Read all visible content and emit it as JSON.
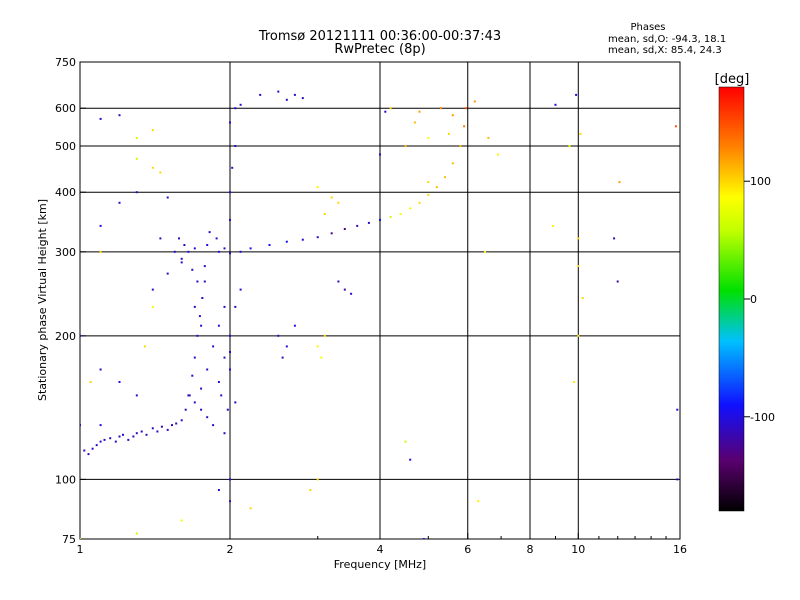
{
  "chart_data": {
    "type": "scatter",
    "title": "Tromsø 20121111 00:36:00-00:37:43",
    "subtitle": "RwPretec (8p)",
    "xlabel": "Frequency [MHz]",
    "ylabel": "Stationary phase Virtual Height [km]",
    "xscale": "log",
    "yscale": "log",
    "xlim": [
      1,
      16
    ],
    "ylim": [
      75,
      750
    ],
    "xticks": [
      1,
      2,
      4,
      6,
      8,
      10,
      16
    ],
    "xtick_labels": [
      "1",
      "2",
      "4",
      "6",
      "8",
      "10",
      "16"
    ],
    "yticks": [
      75,
      100,
      200,
      300,
      400,
      500,
      600,
      750
    ],
    "ytick_labels": [
      "75",
      "100",
      "200",
      "300",
      "400",
      "500",
      "600",
      "750"
    ],
    "grid": true,
    "stats": {
      "header": "Phases",
      "line_o": "mean, sd,O: -94.3, 18.1",
      "line_x": "mean, sd,X:  85.4, 24.3"
    },
    "colorbar": {
      "label": "[deg]",
      "range": [
        -180,
        180
      ],
      "ticks": [
        100,
        0,
        -100
      ],
      "tick_labels": [
        "100",
        "0",
        "-100"
      ]
    },
    "series": [
      {
        "points": [
          [
            1.02,
            115,
            -110
          ],
          [
            1.04,
            113,
            -112
          ],
          [
            1.06,
            116,
            -108
          ],
          [
            1.08,
            118,
            -110
          ],
          [
            1.1,
            120,
            -105
          ],
          [
            1.12,
            121,
            -110
          ],
          [
            1.15,
            122,
            -112
          ],
          [
            1.18,
            120,
            -108
          ],
          [
            1.2,
            123,
            -110
          ],
          [
            1.22,
            124,
            -105
          ],
          [
            1.25,
            121,
            -110
          ],
          [
            1.28,
            123,
            -112
          ],
          [
            1.3,
            125,
            -110
          ],
          [
            1.33,
            126,
            -108
          ],
          [
            1.36,
            124,
            -110
          ],
          [
            1.4,
            128,
            -105
          ],
          [
            1.43,
            126,
            -110
          ],
          [
            1.46,
            129,
            -112
          ],
          [
            1.5,
            127,
            -110
          ],
          [
            1.53,
            130,
            -108
          ],
          [
            1.56,
            131,
            -110
          ],
          [
            1.6,
            133,
            -105
          ],
          [
            1.63,
            140,
            -110
          ],
          [
            1.66,
            150,
            -112
          ],
          [
            1.68,
            165,
            -110
          ],
          [
            1.7,
            180,
            -108
          ],
          [
            1.72,
            200,
            -110
          ],
          [
            1.74,
            220,
            -105
          ],
          [
            1.76,
            240,
            -110
          ],
          [
            1.78,
            260,
            -112
          ],
          [
            1.6,
            290,
            -100
          ],
          [
            1.65,
            300,
            -100
          ],
          [
            1.7,
            305,
            -105
          ],
          [
            1.8,
            310,
            -105
          ],
          [
            1.9,
            300,
            -100
          ],
          [
            2.0,
            298,
            -105
          ],
          [
            2.1,
            300,
            -100
          ],
          [
            2.2,
            305,
            -100
          ],
          [
            2.4,
            310,
            -95
          ],
          [
            2.6,
            315,
            -95
          ],
          [
            2.8,
            318,
            -100
          ],
          [
            3.0,
            322,
            -100
          ],
          [
            3.2,
            328,
            -130
          ],
          [
            3.4,
            335,
            -130
          ],
          [
            3.6,
            340,
            -120
          ],
          [
            3.8,
            345,
            -110
          ],
          [
            4.0,
            350,
            -90
          ],
          [
            4.2,
            355,
            60
          ],
          [
            4.4,
            360,
            80
          ],
          [
            4.6,
            370,
            90
          ],
          [
            4.8,
            380,
            100
          ],
          [
            5.0,
            395,
            100
          ],
          [
            5.2,
            410,
            110
          ],
          [
            5.4,
            430,
            110
          ],
          [
            5.6,
            460,
            110
          ],
          [
            5.8,
            500,
            110
          ],
          [
            5.9,
            550,
            130
          ],
          [
            5.95,
            600,
            150
          ],
          [
            1.9,
            160,
            -110
          ],
          [
            1.95,
            180,
            -110
          ],
          [
            2.0,
            200,
            -110
          ],
          [
            2.05,
            230,
            -110
          ],
          [
            2.1,
            250,
            -100
          ],
          [
            2.0,
            350,
            -110
          ],
          [
            2.0,
            400,
            -110
          ],
          [
            2.02,
            450,
            -110
          ],
          [
            2.05,
            500,
            -110
          ],
          [
            2.0,
            560,
            -100
          ],
          [
            2.05,
            600,
            -100
          ],
          [
            2.1,
            610,
            -100
          ],
          [
            1.92,
            150,
            -110
          ],
          [
            1.98,
            140,
            -110
          ],
          [
            2.05,
            145,
            -110
          ],
          [
            2.5,
            200,
            -110
          ],
          [
            2.6,
            190,
            -100
          ],
          [
            2.7,
            210,
            -100
          ],
          [
            2.55,
            180,
            -110
          ],
          [
            3.1,
            360,
            100
          ],
          [
            3.2,
            390,
            100
          ],
          [
            3.0,
            410,
            90
          ],
          [
            3.3,
            380,
            100
          ],
          [
            4.5,
            500,
            110
          ],
          [
            4.7,
            560,
            110
          ],
          [
            4.8,
            590,
            120
          ],
          [
            5.3,
            600,
            130
          ],
          [
            5.6,
            580,
            120
          ],
          [
            3.4,
            250,
            -120
          ],
          [
            3.3,
            260,
            -110
          ],
          [
            3.5,
            245,
            -110
          ],
          [
            10.0,
            320,
            100
          ],
          [
            10.0,
            280,
            100
          ],
          [
            10.2,
            240,
            100
          ],
          [
            10.0,
            200,
            90
          ],
          [
            9.8,
            160,
            90
          ],
          [
            9.6,
            500,
            80
          ],
          [
            10.1,
            530,
            100
          ],
          [
            9.9,
            640,
            -100
          ],
          [
            9.0,
            610,
            -100
          ],
          [
            8.9,
            340,
            90
          ],
          [
            15.7,
            550,
            150
          ],
          [
            15.8,
            140,
            -100
          ],
          [
            15.8,
            100,
            -110
          ],
          [
            12.1,
            420,
            120
          ],
          [
            11.8,
            320,
            -110
          ],
          [
            12.0,
            260,
            -120
          ],
          [
            6.5,
            300,
            90
          ],
          [
            6.6,
            520,
            110
          ],
          [
            6.9,
            480,
            90
          ],
          [
            6.2,
            620,
            120
          ],
          [
            1.2,
            580,
            -110
          ],
          [
            1.3,
            520,
            60
          ],
          [
            1.4,
            540,
            100
          ],
          [
            1.1,
            570,
            -110
          ],
          [
            1.3,
            470,
            60
          ],
          [
            1.1,
            340,
            -100
          ],
          [
            1.1,
            300,
            100
          ],
          [
            1.0,
            200,
            -110
          ],
          [
            1.1,
            170,
            -110
          ],
          [
            1.2,
            160,
            -100
          ],
          [
            1.3,
            150,
            -110
          ],
          [
            1.05,
            160,
            100
          ],
          [
            1.1,
            130,
            -100
          ],
          [
            1.0,
            130,
            -110
          ],
          [
            1.35,
            190,
            100
          ],
          [
            1.4,
            230,
            80
          ],
          [
            1.4,
            250,
            -110
          ],
          [
            1.5,
            270,
            -110
          ],
          [
            1.45,
            320,
            -110
          ],
          [
            1.3,
            400,
            -110
          ],
          [
            1.2,
            380,
            -110
          ],
          [
            1.5,
            390,
            -110
          ],
          [
            1.45,
            440,
            100
          ],
          [
            1.4,
            450,
            100
          ],
          [
            2.3,
            640,
            -110
          ],
          [
            2.5,
            650,
            -110
          ],
          [
            2.7,
            640,
            -110
          ],
          [
            2.8,
            630,
            -110
          ],
          [
            2.6,
            625,
            -110
          ],
          [
            4.0,
            480,
            -110
          ],
          [
            4.1,
            590,
            -110
          ],
          [
            4.2,
            600,
            100
          ],
          [
            5.5,
            530,
            100
          ],
          [
            5.0,
            520,
            80
          ],
          [
            4.5,
            120,
            60
          ],
          [
            4.6,
            110,
            -100
          ],
          [
            4.9,
            75,
            -100
          ],
          [
            5.0,
            420,
            100
          ],
          [
            6.3,
            90,
            90
          ],
          [
            1.9,
            95,
            -110
          ],
          [
            2.0,
            90,
            -110
          ],
          [
            2.0,
            100,
            -100
          ],
          [
            2.2,
            87,
            100
          ],
          [
            1.0,
            75,
            100
          ],
          [
            1.3,
            77,
            60
          ],
          [
            1.6,
            82,
            80
          ],
          [
            2.9,
            95,
            100
          ],
          [
            3.0,
            100,
            100
          ],
          [
            3.1,
            200,
            100
          ],
          [
            3.0,
            190,
            90
          ],
          [
            3.05,
            180,
            80
          ],
          [
            2.0,
            185,
            -110
          ],
          [
            2.0,
            170,
            -100
          ],
          [
            1.95,
            125,
            -110
          ],
          [
            1.85,
            130,
            -110
          ],
          [
            1.8,
            135,
            -110
          ],
          [
            1.75,
            140,
            -110
          ],
          [
            1.7,
            145,
            -110
          ],
          [
            1.65,
            150,
            -110
          ],
          [
            1.75,
            155,
            -110
          ],
          [
            1.8,
            170,
            -110
          ],
          [
            1.85,
            190,
            -110
          ],
          [
            1.9,
            210,
            -110
          ],
          [
            1.95,
            230,
            -110
          ],
          [
            1.75,
            210,
            -110
          ],
          [
            1.7,
            230,
            -110
          ],
          [
            1.72,
            260,
            -110
          ],
          [
            1.78,
            280,
            -110
          ],
          [
            1.82,
            330,
            -110
          ],
          [
            1.88,
            320,
            -110
          ],
          [
            1.95,
            305,
            -110
          ],
          [
            1.58,
            320,
            -110
          ],
          [
            1.62,
            310,
            -110
          ],
          [
            1.55,
            300,
            -110
          ],
          [
            1.6,
            285,
            -110
          ],
          [
            1.68,
            275,
            -110
          ]
        ]
      }
    ]
  }
}
